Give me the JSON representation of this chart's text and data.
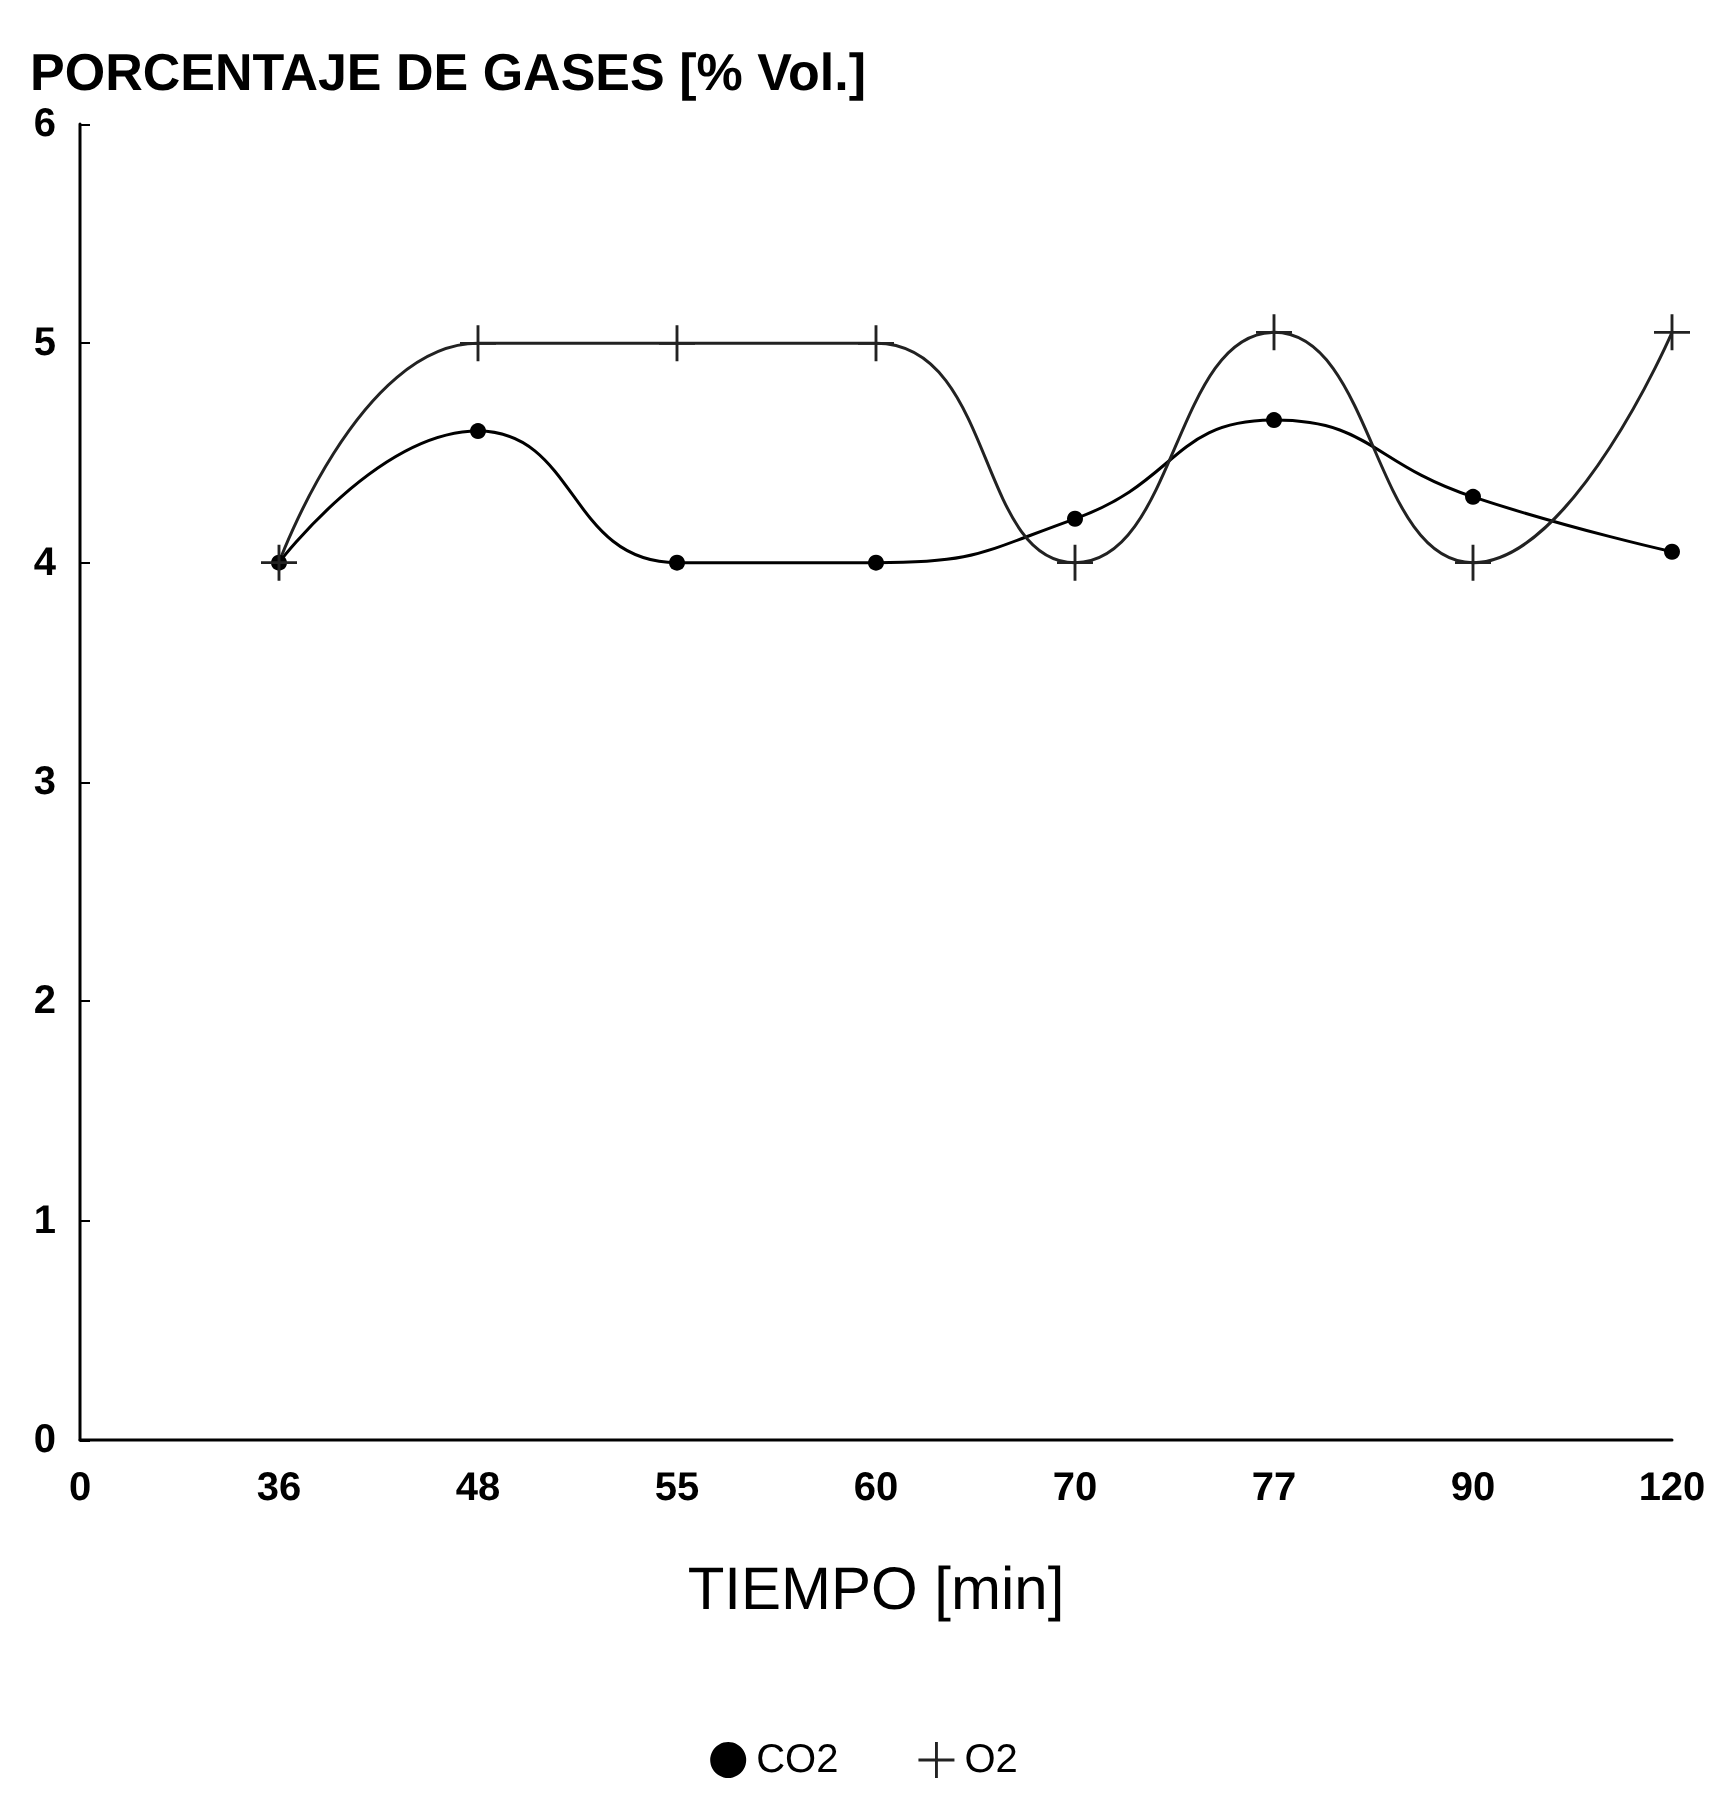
{
  "chart_data": {
    "type": "line",
    "title": "PORCENTAJE DE GASES [% Vol.]",
    "xlabel": "TIEMPO [min]",
    "categories": [
      "0",
      "36",
      "48",
      "55",
      "60",
      "70",
      "77",
      "90",
      "120"
    ],
    "series": [
      {
        "name": "CO2",
        "color": "#000000",
        "marker": "circle",
        "values": [
          null,
          4,
          4.6,
          4,
          4,
          4.2,
          4.65,
          4.3,
          4.05
        ]
      },
      {
        "name": "O2",
        "color": "#222222",
        "marker": "cross",
        "values": [
          null,
          4,
          5,
          5,
          5,
          4,
          5.05,
          4,
          5.05
        ]
      }
    ],
    "ylim": [
      0,
      6
    ],
    "yticks": [
      0,
      1,
      2,
      3,
      4,
      5,
      6
    ],
    "grid": false,
    "legend": "bottom",
    "line_style": "solid"
  }
}
